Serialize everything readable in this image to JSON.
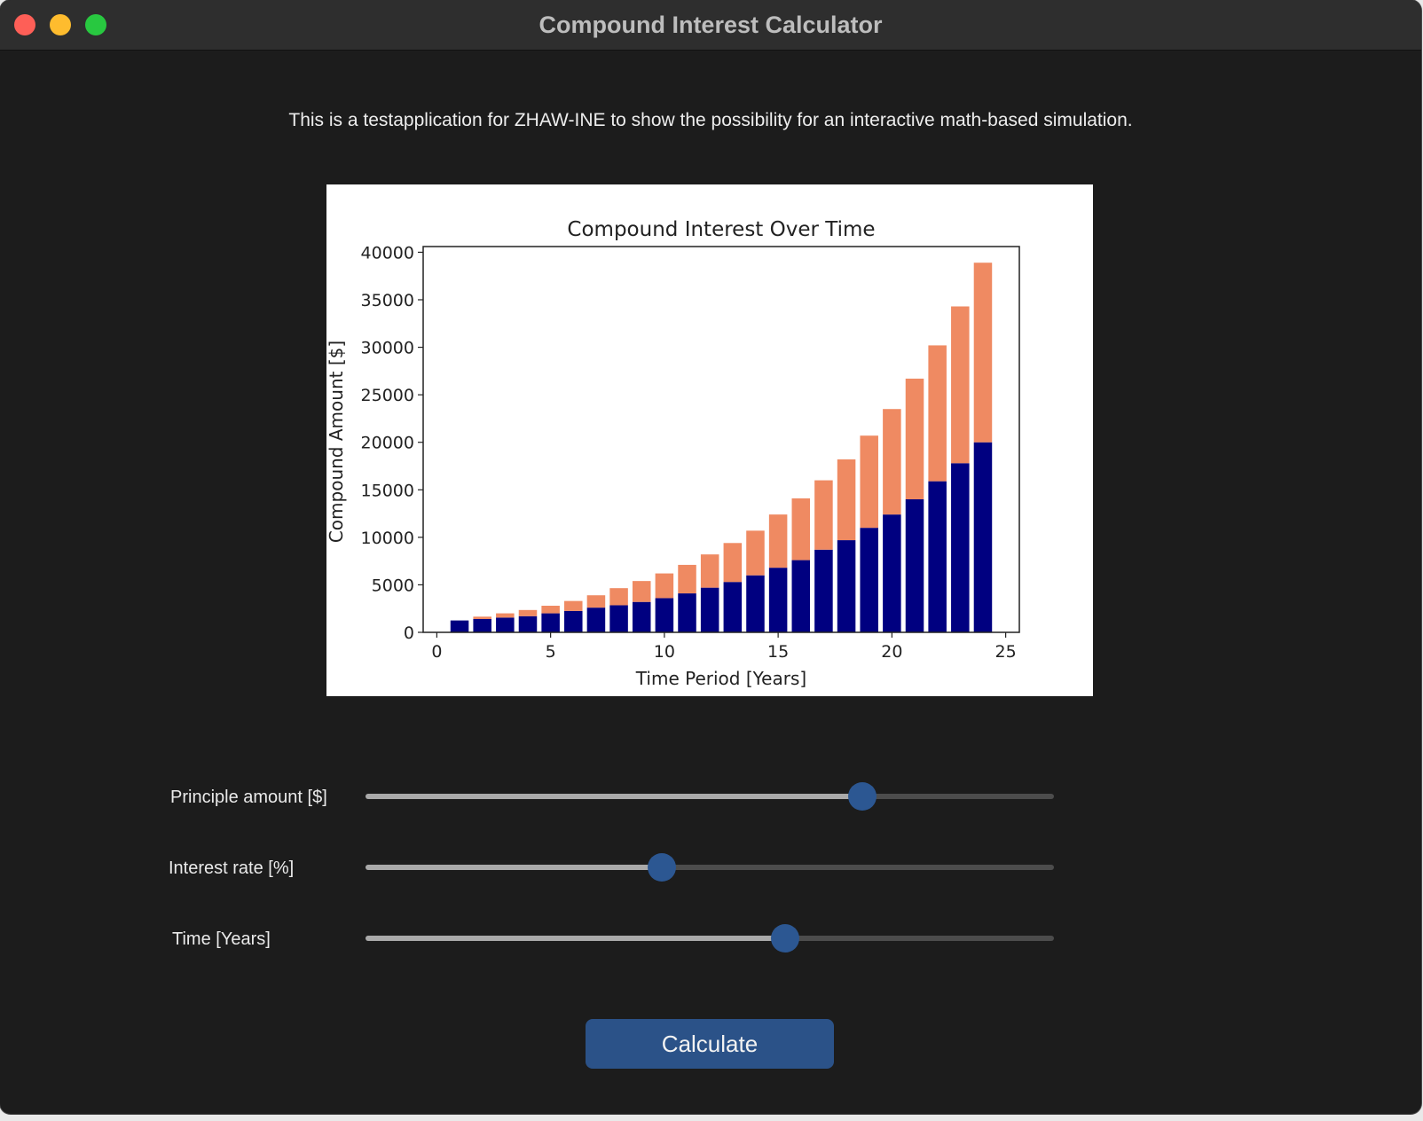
{
  "window": {
    "title": "Compound Interest Calculator"
  },
  "description": "This is a testapplication for ZHAW-INE to show the possibility for an interactive math-based simulation.",
  "chart_data": {
    "type": "bar",
    "stacked": true,
    "title": "Compound Interest Over Time",
    "xlabel": "Time Period [Years]",
    "ylabel": "Compound Amount [$]",
    "xlim": [
      -0.6,
      25.6
    ],
    "ylim": [
      0,
      40600
    ],
    "xticks": [
      0,
      5,
      10,
      15,
      20,
      25
    ],
    "yticks": [
      0,
      5000,
      10000,
      15000,
      20000,
      25000,
      30000,
      35000,
      40000
    ],
    "x": [
      1,
      2,
      3,
      4,
      5,
      6,
      7,
      8,
      9,
      10,
      11,
      12,
      13,
      14,
      15,
      16,
      17,
      18,
      19,
      20,
      21,
      22,
      23,
      24
    ],
    "series": [
      {
        "color": "#000080",
        "values": [
          1250,
          1400,
          1550,
          1700,
          2000,
          2250,
          2600,
          2850,
          3200,
          3600,
          4100,
          4700,
          5300,
          6000,
          6800,
          7600,
          8700,
          9700,
          11000,
          12400,
          14000,
          15900,
          17800,
          20000
        ]
      },
      {
        "color": "#ef8a62",
        "values": [
          0,
          250,
          450,
          650,
          800,
          1050,
          1300,
          1800,
          2200,
          2600,
          3000,
          3500,
          4100,
          4700,
          5600,
          6500,
          7300,
          8500,
          9700,
          11100,
          12700,
          14300,
          16500,
          18900
        ]
      }
    ]
  },
  "sliders": [
    {
      "label": "Principle amount [$]",
      "value": 0.722
    },
    {
      "label": "Interest rate [%]",
      "value": 0.43
    },
    {
      "label": "Time [Years]",
      "value": 0.61
    }
  ],
  "calculate_label": "Calculate",
  "colors": {
    "accent": "#2b5288",
    "background": "#1c1c1c"
  }
}
